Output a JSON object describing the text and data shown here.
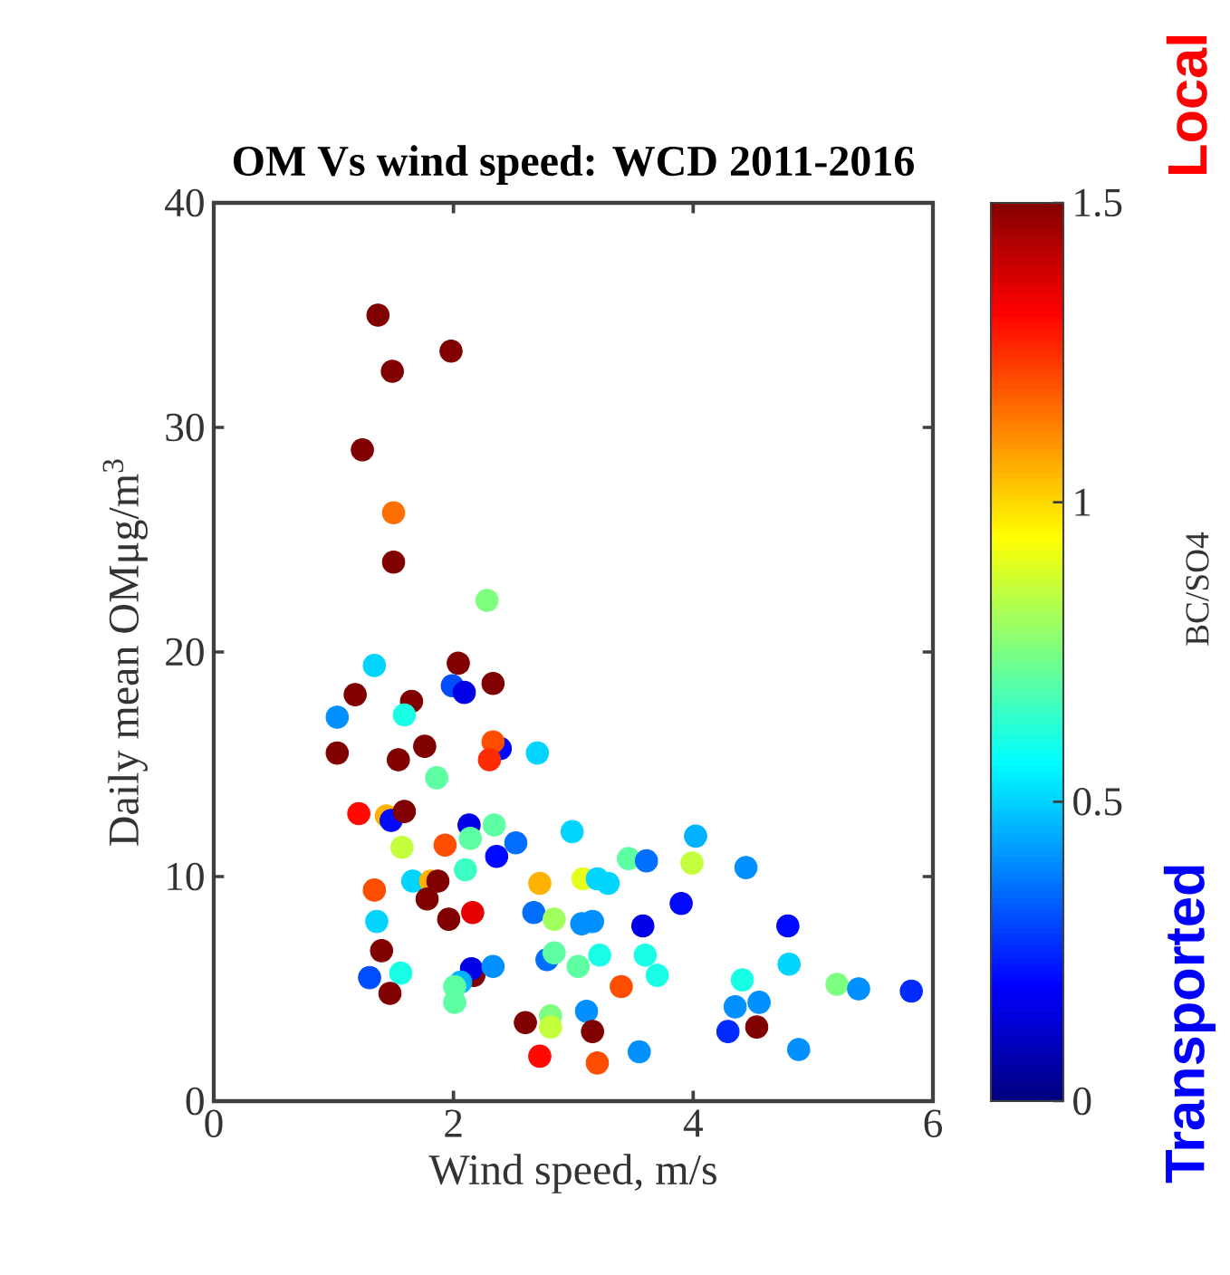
{
  "chart_data": {
    "type": "scatter",
    "title": "OM Vs wind speed: WCD 2011-2016",
    "xlabel": "Wind speed, m/s",
    "ylabel": "Daily mean OMμg/m$^{3}$",
    "clabel": "BC/SO4",
    "annotations": [
      "Local",
      "Transported"
    ],
    "marker": "circle",
    "xlim": [
      0,
      6
    ],
    "ylim": [
      0,
      40
    ],
    "xticks": [
      0,
      2,
      4,
      6
    ],
    "yticks": [
      0,
      10,
      20,
      30,
      40
    ],
    "clim": [
      0,
      1.5
    ],
    "cticks": [
      0,
      0.5,
      1,
      1.5
    ],
    "x": [
      1.37,
      1.98,
      1.49,
      1.24,
      1.5,
      1.5,
      2.28,
      1.34,
      2.04,
      1.99,
      2.09,
      2.33,
      1.18,
      1.65,
      1.03,
      1.59,
      1.03,
      1.54,
      1.76,
      2.39,
      2.33,
      2.3,
      2.7,
      1.86,
      1.21,
      1.44,
      1.48,
      1.59,
      2.13,
      2.34,
      2.14,
      2.99,
      1.57,
      1.93,
      2.36,
      2.52,
      3.46,
      3.61,
      2.1,
      1.34,
      1.66,
      1.81,
      1.87,
      1.78,
      1.96,
      2.16,
      2.72,
      3.08,
      3.2,
      3.29,
      2.67,
      2.84,
      3.07,
      3.16,
      3.58,
      1.36,
      1.4,
      1.3,
      1.56,
      1.47,
      2.17,
      2.15,
      2.33,
      2.06,
      2.01,
      2.01,
      2.78,
      2.84,
      3.04,
      3.22,
      3.6,
      3.4,
      2.6,
      2.81,
      2.81,
      3.11,
      3.16,
      2.72,
      3.2,
      3.55,
      4.02,
      3.99,
      4.44,
      3.9,
      4.79,
      3.7,
      4.41,
      4.8,
      5.2,
      5.38,
      5.82,
      4.35,
      4.55,
      4.29,
      4.53,
      4.88
    ],
    "values": [
      35.0,
      33.4,
      32.5,
      29.0,
      26.2,
      24.0,
      22.3,
      19.4,
      19.5,
      18.5,
      18.2,
      18.6,
      18.1,
      17.8,
      17.1,
      17.2,
      15.5,
      15.2,
      15.8,
      15.7,
      16.0,
      15.2,
      15.5,
      14.4,
      12.8,
      12.7,
      12.5,
      12.9,
      12.3,
      12.3,
      11.7,
      12.0,
      11.3,
      11.4,
      10.9,
      11.5,
      10.8,
      10.7,
      10.3,
      9.4,
      9.8,
      9.8,
      9.8,
      9.0,
      8.1,
      8.4,
      9.7,
      9.9,
      9.9,
      9.7,
      8.4,
      8.1,
      7.9,
      8.0,
      7.8,
      8.0,
      6.7,
      5.5,
      5.7,
      4.8,
      5.6,
      5.9,
      6.0,
      5.3,
      5.1,
      4.4,
      6.3,
      6.6,
      6.0,
      6.5,
      6.5,
      5.1,
      3.5,
      3.8,
      3.3,
      4.0,
      3.1,
      2.0,
      1.7,
      2.2,
      11.8,
      10.6,
      10.4,
      8.8,
      7.8,
      5.6,
      5.4,
      6.1,
      5.2,
      5.0,
      4.9,
      4.2,
      4.4,
      3.1,
      3.3,
      2.3
    ],
    "cvalues": [
      1.5,
      1.5,
      1.5,
      1.5,
      1.15,
      1.5,
      0.75,
      0.5,
      1.5,
      0.3,
      0.15,
      1.5,
      1.5,
      1.5,
      0.4,
      0.6,
      1.5,
      1.5,
      1.5,
      0.2,
      1.2,
      1.25,
      0.5,
      0.7,
      1.3,
      1.05,
      0.2,
      1.5,
      0.15,
      0.7,
      0.7,
      0.5,
      0.85,
      1.2,
      0.2,
      0.35,
      0.7,
      0.35,
      0.65,
      1.2,
      0.5,
      1.05,
      1.5,
      1.5,
      1.5,
      1.35,
      1.05,
      0.9,
      0.5,
      0.5,
      0.35,
      0.8,
      0.4,
      0.4,
      0.15,
      0.5,
      1.5,
      0.3,
      0.6,
      1.5,
      1.5,
      0.15,
      0.4,
      0.45,
      0.7,
      0.7,
      0.35,
      0.7,
      0.7,
      0.6,
      0.6,
      1.2,
      1.5,
      0.75,
      0.85,
      0.4,
      1.5,
      1.3,
      1.2,
      0.4,
      0.45,
      0.85,
      0.4,
      0.2,
      0.2,
      0.6,
      0.6,
      0.5,
      0.75,
      0.4,
      0.25,
      0.4,
      0.4,
      0.25,
      1.5,
      0.4
    ]
  }
}
